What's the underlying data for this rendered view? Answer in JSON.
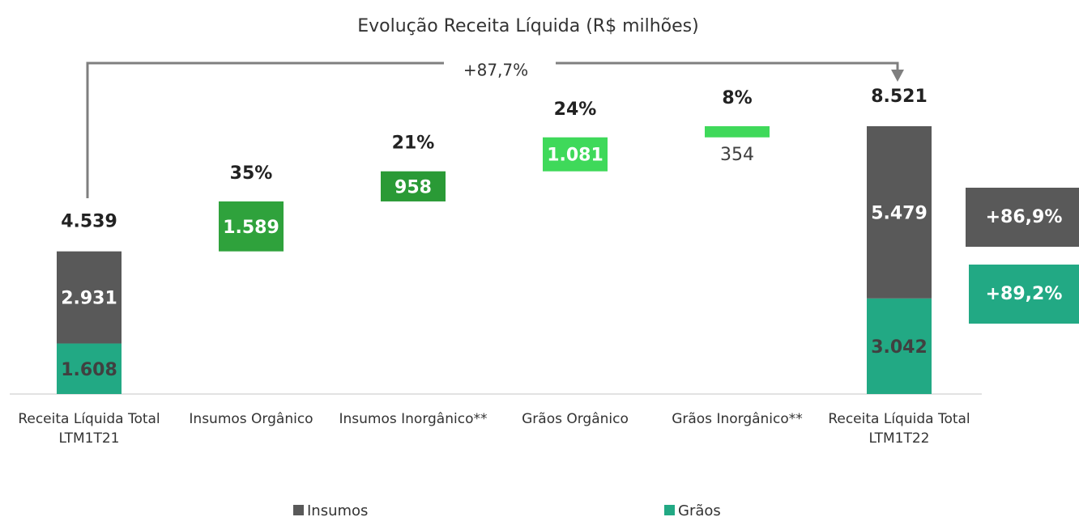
{
  "chart_data": {
    "type": "waterfall",
    "title": "Evolução Receita Líquida (R$ milhões)",
    "categories": [
      "Receita Líquida Total LTM1T21",
      "Insumos Orgânico",
      "Insumos Inorgânico**",
      "Grãos Orgânico",
      "Grãos Inorgânico**",
      "Receita Líquida Total LTM1T22"
    ],
    "series": [
      {
        "name": "Insumos",
        "color": "#595959",
        "values": [
          2931,
          null,
          null,
          null,
          null,
          5479
        ],
        "value_labels": [
          "2.931",
          null,
          null,
          null,
          null,
          "5.479"
        ],
        "growth": {
          "value": 86.9,
          "label": "+86,9%"
        }
      },
      {
        "name": "Grãos",
        "color": "#22a984",
        "values": [
          1608,
          null,
          null,
          null,
          null,
          3042
        ],
        "value_labels": [
          "1.608",
          null,
          null,
          null,
          null,
          "3.042"
        ],
        "growth": {
          "value": 89.2,
          "label": "+89,2%"
        }
      }
    ],
    "steps": {
      "values": [
        null,
        1589,
        958,
        1081,
        354,
        null
      ],
      "value_labels": [
        null,
        "1.589",
        "958",
        "1.081",
        "354",
        null
      ],
      "colors": [
        null,
        "#2fa23c",
        "#2a9a36",
        "#3fd95a",
        "#3fd95a",
        null
      ]
    },
    "shares": {
      "values": [
        null,
        35,
        21,
        24,
        8,
        null
      ],
      "value_labels": [
        null,
        "35%",
        "21%",
        "24%",
        "8%",
        null
      ]
    },
    "totals": {
      "values": [
        4539,
        null,
        null,
        null,
        null,
        8521
      ],
      "value_labels": [
        "4.539",
        null,
        null,
        null,
        null,
        "8.521"
      ]
    },
    "total_growth": {
      "value": 87.7,
      "label": "+87,7%"
    }
  }
}
